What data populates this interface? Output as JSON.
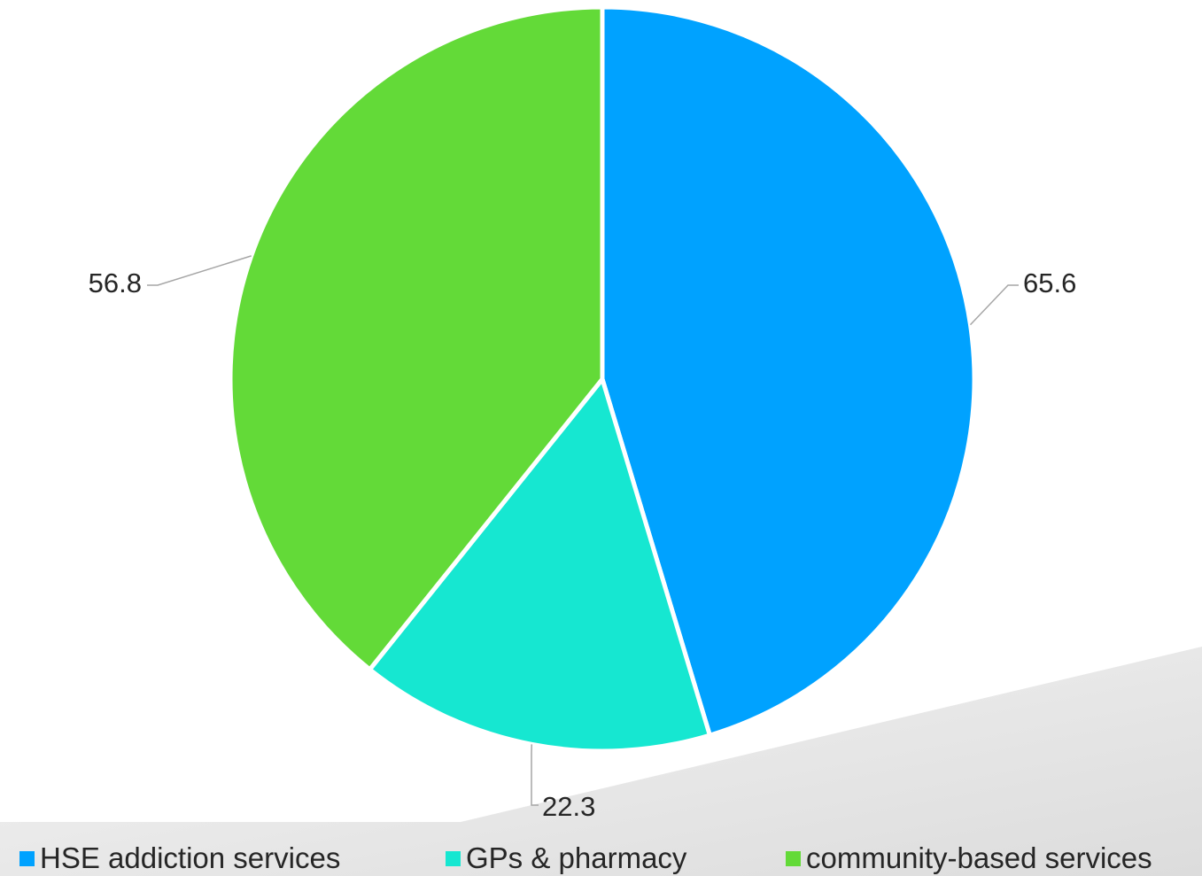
{
  "chart_data": {
    "type": "pie",
    "title": "",
    "categories": [
      "HSE addiction services",
      "GPs & pharmacy",
      "community-based services"
    ],
    "values": [
      65.6,
      22.3,
      56.8
    ],
    "colors": [
      "#00A2FF",
      "#16E7D1",
      "#63DA38"
    ],
    "start_angle_deg": 0,
    "direction": "clockwise",
    "data_labels": [
      "65.6",
      "22.3",
      "56.8"
    ],
    "legend_position": "bottom"
  },
  "legend": {
    "items": [
      {
        "label": "HSE addiction services",
        "color": "#00A2FF"
      },
      {
        "label": "GPs & pharmacy",
        "color": "#16E7D1"
      },
      {
        "label": "community-based services",
        "color": "#63DA38"
      }
    ]
  }
}
